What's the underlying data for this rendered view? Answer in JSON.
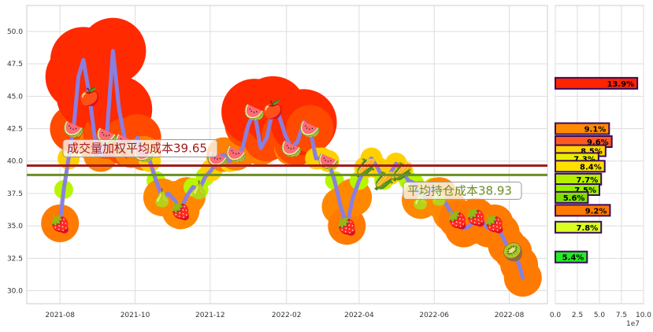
{
  "chart_data": [
    {
      "type": "line",
      "title": "",
      "xlabel": "",
      "ylabel": "",
      "ylim": [
        29,
        52
      ],
      "yticks": [
        "30.0",
        "32.5",
        "35.0",
        "37.5",
        "40.0",
        "42.5",
        "45.0",
        "47.5",
        "50.0"
      ],
      "xticks": [
        "2021-08",
        "2021-10",
        "2021-12",
        "2022-02",
        "2022-04",
        "2022-06",
        "2022-08"
      ],
      "grid": true,
      "series": [
        {
          "color": "#8a7fe0",
          "x": [
            "2021-08-01",
            "2021-08-04",
            "2021-08-08",
            "2021-08-12",
            "2021-08-16",
            "2021-08-20",
            "2021-08-25",
            "2021-08-30",
            "2021-09-03",
            "2021-09-08",
            "2021-09-13",
            "2021-09-18",
            "2021-09-23",
            "2021-09-28",
            "2021-10-03",
            "2021-10-08",
            "2021-10-13",
            "2021-10-18",
            "2021-10-23",
            "2021-10-28",
            "2021-11-02",
            "2021-11-07",
            "2021-11-12",
            "2021-11-17",
            "2021-11-22",
            "2021-11-27",
            "2021-12-02",
            "2021-12-07",
            "2021-12-12",
            "2021-12-17",
            "2021-12-22",
            "2021-12-27",
            "2022-01-01",
            "2022-01-06",
            "2022-01-11",
            "2022-01-16",
            "2022-01-21",
            "2022-01-26",
            "2022-01-31",
            "2022-02-05",
            "2022-02-10",
            "2022-02-15",
            "2022-02-20",
            "2022-02-25",
            "2022-03-02",
            "2022-03-07",
            "2022-03-12",
            "2022-03-17",
            "2022-03-22",
            "2022-03-27",
            "2022-04-01",
            "2022-04-06",
            "2022-04-11",
            "2022-04-16",
            "2022-04-21",
            "2022-04-26",
            "2022-05-01",
            "2022-05-06",
            "2022-05-11",
            "2022-05-16",
            "2022-05-21",
            "2022-05-26",
            "2022-05-31",
            "2022-06-05",
            "2022-06-10",
            "2022-06-15",
            "2022-06-20",
            "2022-06-25",
            "2022-06-30",
            "2022-07-05",
            "2022-07-10",
            "2022-07-15",
            "2022-07-20",
            "2022-07-25",
            "2022-07-30",
            "2022-08-04",
            "2022-08-09",
            "2022-08-12"
          ],
          "values": [
            35.2,
            37.8,
            40.2,
            42.5,
            46.5,
            47.8,
            45.0,
            41.2,
            40.5,
            42.0,
            48.5,
            44.0,
            41.5,
            40.8,
            41.8,
            40.6,
            40.0,
            38.5,
            37.2,
            37.5,
            37.0,
            36.2,
            37.3,
            38.0,
            37.8,
            38.8,
            39.3,
            40.2,
            40.5,
            40.0,
            40.6,
            40.9,
            42.8,
            43.8,
            41.0,
            41.8,
            44.0,
            43.5,
            42.0,
            41.0,
            41.5,
            43.0,
            42.5,
            40.2,
            40.2,
            40.0,
            38.5,
            36.5,
            35.0,
            37.2,
            38.5,
            39.5,
            40.2,
            39.5,
            38.5,
            39.0,
            39.8,
            39.2,
            38.5,
            38.3,
            37.0,
            37.5,
            38.0,
            37.3,
            36.8,
            36.0,
            35.5,
            34.8,
            35.0,
            35.7,
            35.3,
            34.8,
            35.2,
            34.5,
            33.5,
            33.0,
            32.0,
            31.0
          ]
        }
      ],
      "hlines": [
        {
          "value": 39.65,
          "color": "#a11d1d",
          "label": "成交量加权平均成本39.65"
        },
        {
          "value": 38.93,
          "color": "#6b8e23",
          "label": "平均持仓成本38.93"
        }
      ]
    },
    {
      "type": "bar",
      "orientation": "horizontal",
      "xlabel": "",
      "xlim": [
        0,
        10000000
      ],
      "xticks": [
        "0.0",
        "2.5",
        "5.0",
        "7.5",
        "10.0"
      ],
      "offset_label": "1e7",
      "bars": [
        {
          "price": 46.0,
          "volume": 9300000,
          "label": "13.9%",
          "color": "#ff2400"
        },
        {
          "price": 42.5,
          "volume": 6100000,
          "label": "9.1%",
          "color": "#ff8c00"
        },
        {
          "price": 41.5,
          "volume": 6400000,
          "label": "9.6%",
          "color": "#ff5a1f"
        },
        {
          "price": 40.8,
          "volume": 5700000,
          "label": "8.5%",
          "color": "#ffd700"
        },
        {
          "price": 40.2,
          "volume": 4900000,
          "label": "7.3%",
          "color": "#e8f000"
        },
        {
          "price": 39.6,
          "volume": 5600000,
          "label": "8.4%",
          "color": "#ffe000"
        },
        {
          "price": 38.6,
          "volume": 5200000,
          "label": "7.7%",
          "color": "#b5f000"
        },
        {
          "price": 37.8,
          "volume": 5000000,
          "label": "7.5%",
          "color": "#9af000"
        },
        {
          "price": 37.2,
          "volume": 3700000,
          "label": "5.6%",
          "color": "#7ee000"
        },
        {
          "price": 36.2,
          "volume": 6200000,
          "label": "9.2%",
          "color": "#ff7a00"
        },
        {
          "price": 34.9,
          "volume": 5200000,
          "label": "7.8%",
          "color": "#d8ff20"
        },
        {
          "price": 32.6,
          "volume": 3600000,
          "label": "5.4%",
          "color": "#22ee22"
        }
      ]
    }
  ]
}
